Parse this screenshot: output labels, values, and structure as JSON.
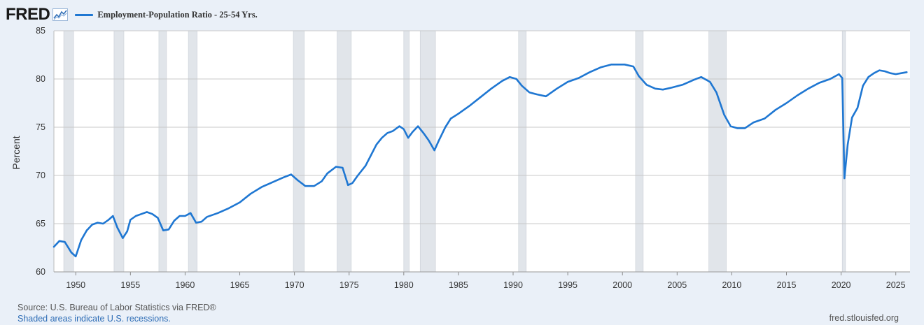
{
  "header": {
    "logo_text": "FRED",
    "logo_icon": "fred-chart-icon",
    "series_label": "Employment-Population Ratio - 25-54 Yrs."
  },
  "colors": {
    "line": "#1f77d2",
    "recession": "#e1e5ea",
    "grid": "#c8c8c8",
    "plot_bg": "#ffffff",
    "page_bg": "#eaf0f8"
  },
  "footer": {
    "source": "U.S. Bureau of Labor Statistics via FRED®",
    "note": "Shaded areas indicate U.S. recessions.",
    "url": "fred.stlouisfed.org"
  },
  "chart_data": {
    "type": "line",
    "title": "",
    "xlabel": "",
    "ylabel": "Percent",
    "xlim": [
      1948.0,
      2026.3
    ],
    "ylim": [
      60,
      85
    ],
    "yticks": [
      60,
      65,
      70,
      75,
      80,
      85
    ],
    "xticks": [
      1950,
      1955,
      1960,
      1965,
      1970,
      1975,
      1980,
      1985,
      1990,
      1995,
      2000,
      2005,
      2010,
      2015,
      2020,
      2025
    ],
    "grid": true,
    "legend_position": "top-left",
    "recessions": [
      [
        1948.9,
        1949.8
      ],
      [
        1953.5,
        1954.4
      ],
      [
        1957.6,
        1958.3
      ],
      [
        1960.3,
        1961.1
      ],
      [
        1969.9,
        1970.9
      ],
      [
        1973.9,
        1975.2
      ],
      [
        1980.0,
        1980.5
      ],
      [
        1981.5,
        1982.9
      ],
      [
        1990.5,
        1991.2
      ],
      [
        2001.2,
        2001.9
      ],
      [
        2007.9,
        2009.5
      ],
      [
        2020.1,
        2020.4
      ]
    ],
    "series": [
      {
        "name": "Employment-Population Ratio - 25-54 Yrs.",
        "points": [
          [
            1948.0,
            62.6
          ],
          [
            1948.5,
            63.2
          ],
          [
            1949.0,
            63.1
          ],
          [
            1949.6,
            62.0
          ],
          [
            1950.0,
            61.6
          ],
          [
            1950.5,
            63.3
          ],
          [
            1951.0,
            64.3
          ],
          [
            1951.5,
            64.9
          ],
          [
            1952.0,
            65.1
          ],
          [
            1952.5,
            65.0
          ],
          [
            1953.0,
            65.4
          ],
          [
            1953.4,
            65.8
          ],
          [
            1953.8,
            64.6
          ],
          [
            1954.3,
            63.5
          ],
          [
            1954.7,
            64.2
          ],
          [
            1955.0,
            65.4
          ],
          [
            1955.5,
            65.8
          ],
          [
            1956.0,
            66.0
          ],
          [
            1956.5,
            66.2
          ],
          [
            1957.0,
            66.0
          ],
          [
            1957.5,
            65.6
          ],
          [
            1958.0,
            64.3
          ],
          [
            1958.5,
            64.4
          ],
          [
            1959.0,
            65.3
          ],
          [
            1959.5,
            65.8
          ],
          [
            1960.0,
            65.8
          ],
          [
            1960.5,
            66.1
          ],
          [
            1961.0,
            65.1
          ],
          [
            1961.5,
            65.2
          ],
          [
            1962.0,
            65.7
          ],
          [
            1963.0,
            66.1
          ],
          [
            1964.0,
            66.6
          ],
          [
            1965.0,
            67.2
          ],
          [
            1966.0,
            68.1
          ],
          [
            1967.0,
            68.8
          ],
          [
            1968.0,
            69.3
          ],
          [
            1969.0,
            69.8
          ],
          [
            1969.7,
            70.1
          ],
          [
            1970.3,
            69.5
          ],
          [
            1971.0,
            68.9
          ],
          [
            1971.8,
            68.9
          ],
          [
            1972.5,
            69.4
          ],
          [
            1973.0,
            70.2
          ],
          [
            1973.8,
            70.9
          ],
          [
            1974.4,
            70.8
          ],
          [
            1974.9,
            69.0
          ],
          [
            1975.3,
            69.2
          ],
          [
            1975.8,
            70.0
          ],
          [
            1976.5,
            71.0
          ],
          [
            1977.0,
            72.1
          ],
          [
            1977.5,
            73.2
          ],
          [
            1978.0,
            73.9
          ],
          [
            1978.5,
            74.4
          ],
          [
            1979.0,
            74.6
          ],
          [
            1979.6,
            75.1
          ],
          [
            1980.0,
            74.8
          ],
          [
            1980.4,
            73.9
          ],
          [
            1980.8,
            74.5
          ],
          [
            1981.3,
            75.1
          ],
          [
            1981.8,
            74.4
          ],
          [
            1982.3,
            73.6
          ],
          [
            1982.8,
            72.6
          ],
          [
            1983.2,
            73.6
          ],
          [
            1983.8,
            75.0
          ],
          [
            1984.3,
            75.9
          ],
          [
            1985.0,
            76.4
          ],
          [
            1986.0,
            77.2
          ],
          [
            1987.0,
            78.1
          ],
          [
            1988.0,
            79.0
          ],
          [
            1989.0,
            79.8
          ],
          [
            1989.7,
            80.2
          ],
          [
            1990.3,
            80.0
          ],
          [
            1990.8,
            79.3
          ],
          [
            1991.5,
            78.6
          ],
          [
            1992.2,
            78.4
          ],
          [
            1993.0,
            78.2
          ],
          [
            1994.0,
            79.0
          ],
          [
            1995.0,
            79.7
          ],
          [
            1996.0,
            80.1
          ],
          [
            1997.0,
            80.7
          ],
          [
            1998.0,
            81.2
          ],
          [
            1999.0,
            81.5
          ],
          [
            2000.2,
            81.5
          ],
          [
            2001.0,
            81.3
          ],
          [
            2001.5,
            80.3
          ],
          [
            2002.2,
            79.4
          ],
          [
            2003.0,
            79.0
          ],
          [
            2003.7,
            78.9
          ],
          [
            2004.5,
            79.1
          ],
          [
            2005.5,
            79.4
          ],
          [
            2006.5,
            79.9
          ],
          [
            2007.2,
            80.2
          ],
          [
            2008.0,
            79.7
          ],
          [
            2008.6,
            78.6
          ],
          [
            2009.3,
            76.3
          ],
          [
            2009.9,
            75.1
          ],
          [
            2010.5,
            74.9
          ],
          [
            2011.2,
            74.9
          ],
          [
            2012.0,
            75.5
          ],
          [
            2013.0,
            75.9
          ],
          [
            2014.0,
            76.8
          ],
          [
            2015.0,
            77.5
          ],
          [
            2016.0,
            78.3
          ],
          [
            2017.0,
            79.0
          ],
          [
            2018.0,
            79.6
          ],
          [
            2019.0,
            80.0
          ],
          [
            2019.8,
            80.5
          ],
          [
            2020.1,
            80.1
          ],
          [
            2020.3,
            69.7
          ],
          [
            2020.6,
            73.2
          ],
          [
            2021.0,
            76.0
          ],
          [
            2021.5,
            77.0
          ],
          [
            2022.0,
            79.3
          ],
          [
            2022.5,
            80.2
          ],
          [
            2023.0,
            80.6
          ],
          [
            2023.5,
            80.9
          ],
          [
            2024.0,
            80.8
          ],
          [
            2024.5,
            80.6
          ],
          [
            2025.0,
            80.5
          ],
          [
            2025.5,
            80.6
          ],
          [
            2026.0,
            80.7
          ]
        ]
      }
    ]
  }
}
